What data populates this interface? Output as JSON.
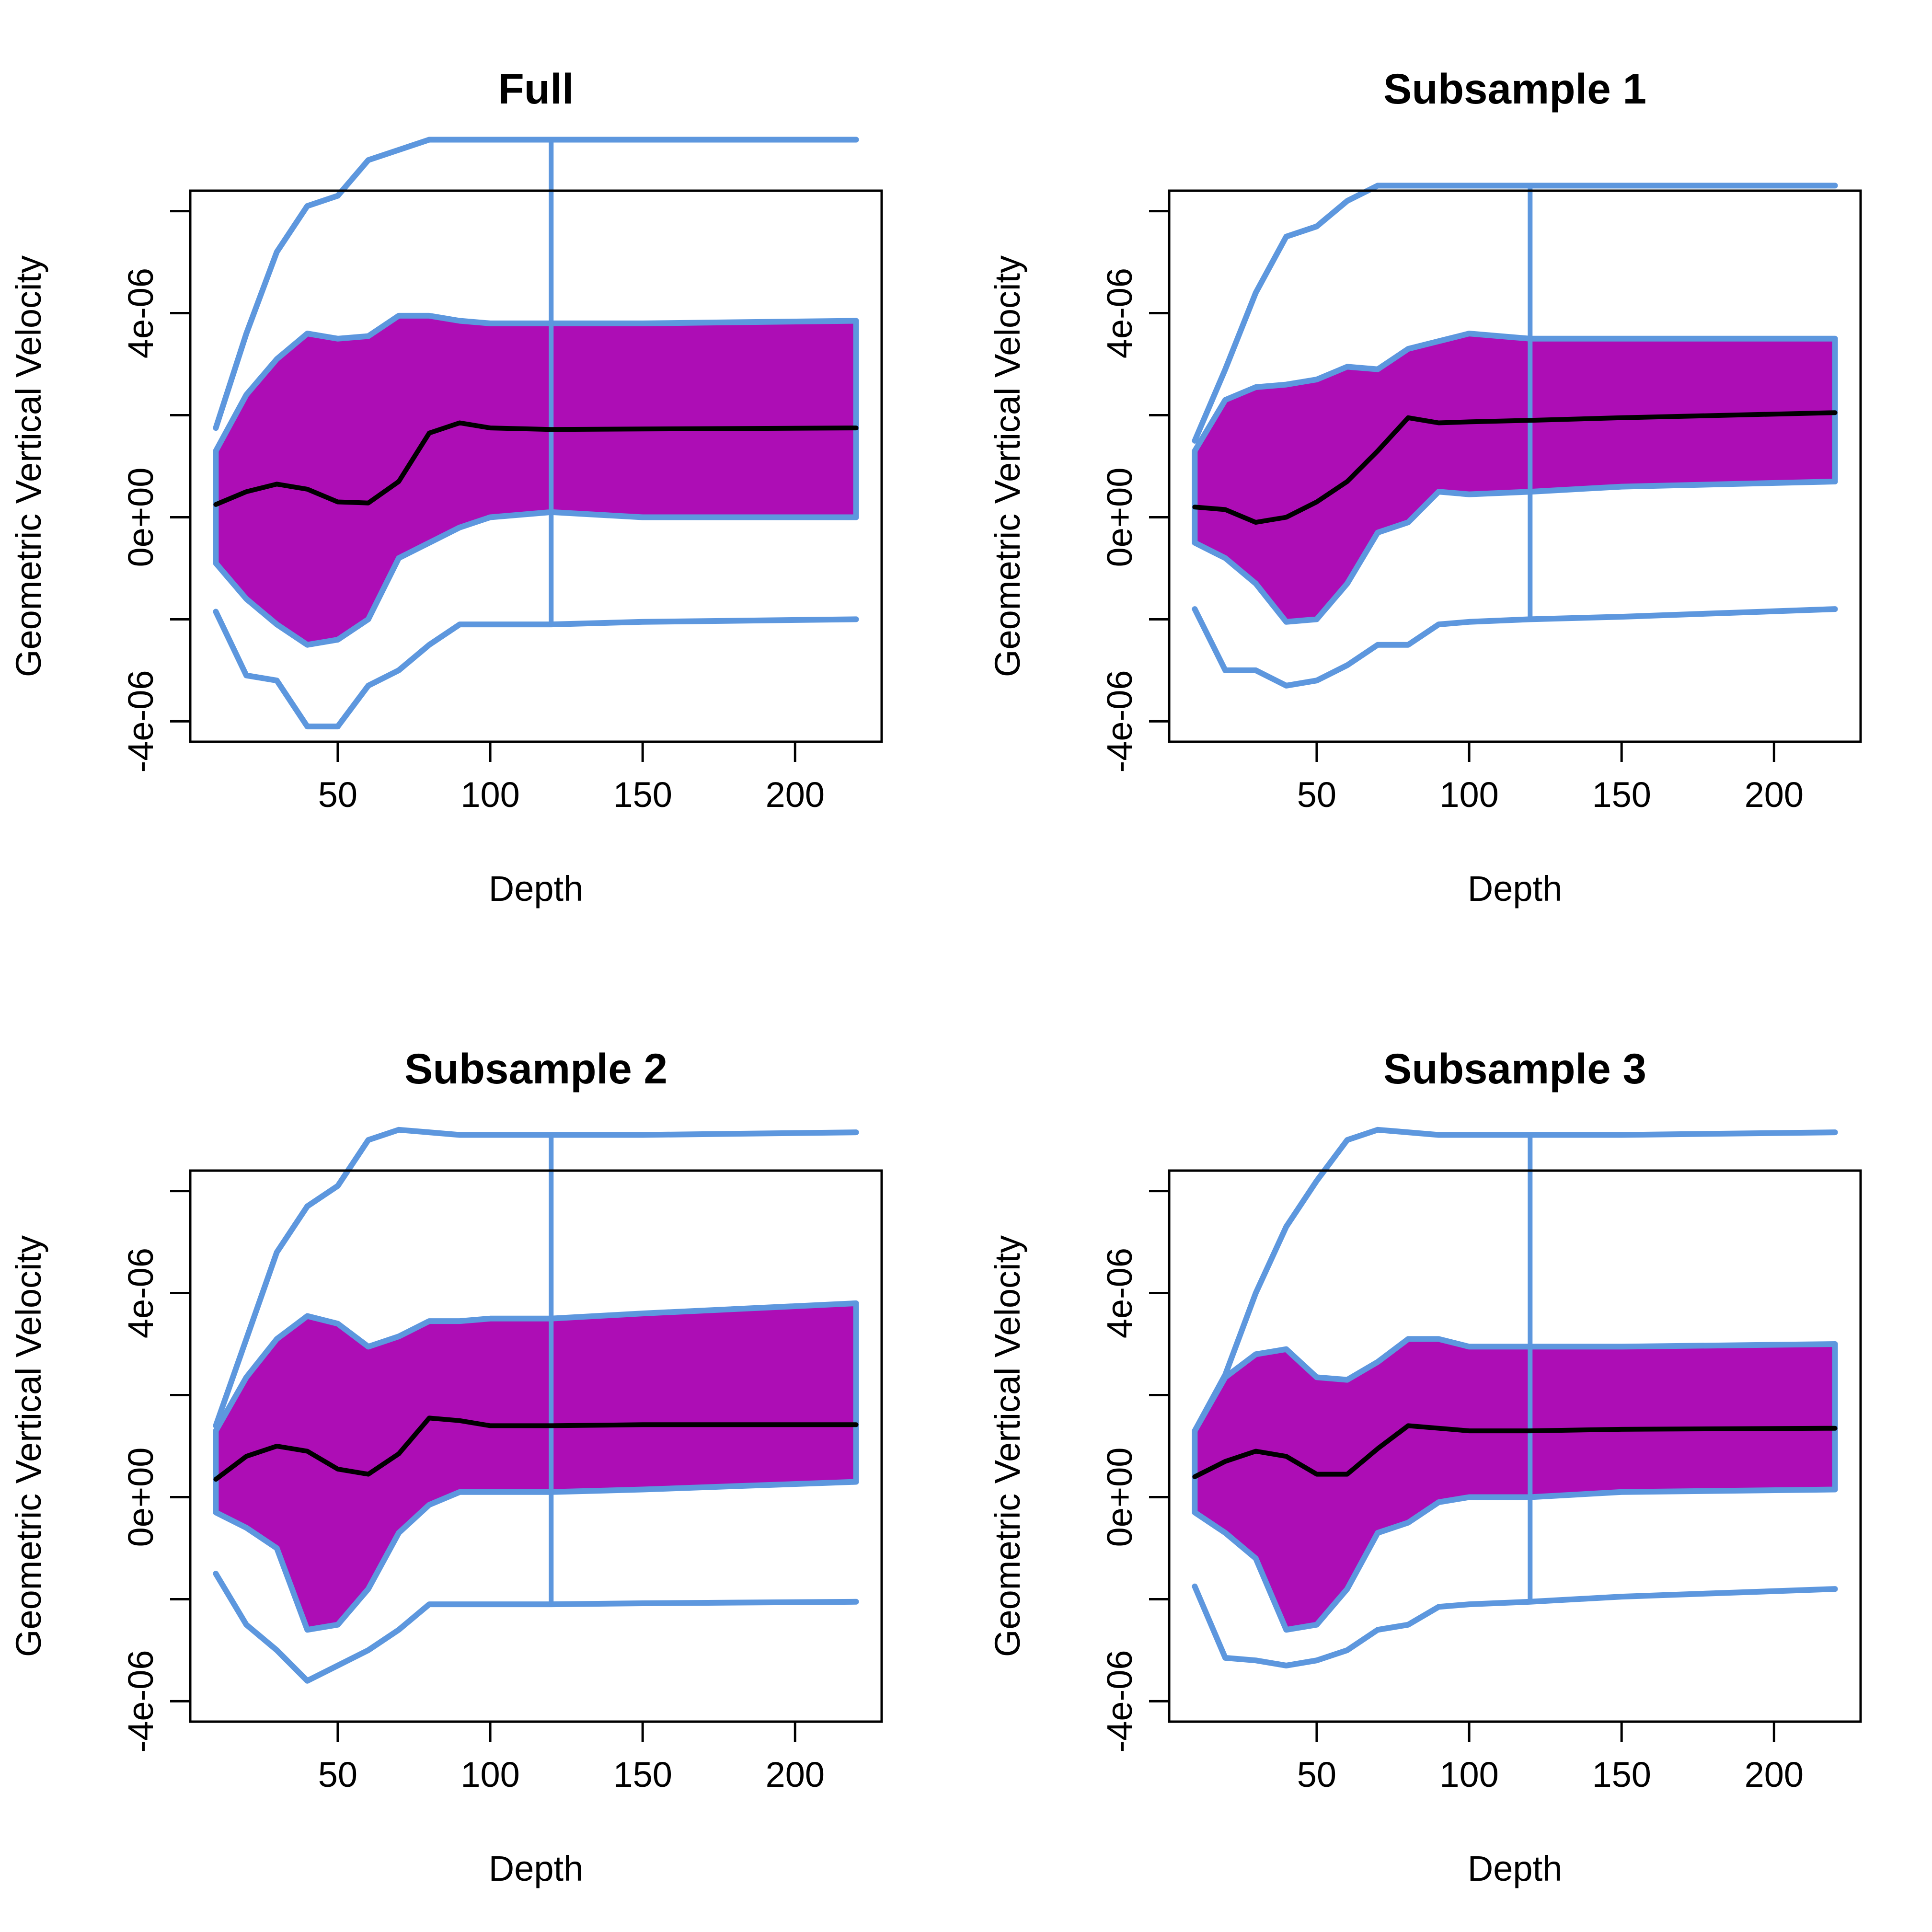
{
  "colors": {
    "band_fill": "#AD0DB5",
    "line_blue": "#5D97DE",
    "mean_line": "#000000"
  },
  "chart_data": [
    {
      "type": "line",
      "title": "Full",
      "xlabel": "Depth",
      "ylabel": "Geometric Vertical Velocity",
      "xlim": [
        10,
        220
      ],
      "ylim": [
        -4e-06,
        6e-06
      ],
      "xticks": [
        50,
        100,
        150,
        200
      ],
      "yticks": [
        -4e-06,
        0,
        4e-06
      ],
      "xtick_labels": [
        "50",
        "100",
        "150",
        "200"
      ],
      "ytick_labels": [
        "-4e-06",
        "0e+00",
        "4e-06"
      ],
      "vertical_marker_x": 120,
      "x": [
        10,
        20,
        30,
        40,
        50,
        60,
        70,
        80,
        90,
        100,
        120,
        150,
        220
      ],
      "series": [
        {
          "name": "upper outer",
          "values": [
            1.75e-06,
            3.6e-06,
            5.2e-06,
            6.1e-06,
            6.3e-06,
            7e-06,
            7.2e-06,
            7.4e-06,
            7.4e-06,
            7.4e-06,
            7.4e-06,
            7.4e-06,
            7.4e-06
          ]
        },
        {
          "name": "band upper",
          "values": [
            1.3e-06,
            2.4e-06,
            3.1e-06,
            3.6e-06,
            3.5e-06,
            3.55e-06,
            3.95e-06,
            3.95e-06,
            3.85e-06,
            3.8e-06,
            3.8e-06,
            3.8e-06,
            3.85e-06
          ]
        },
        {
          "name": "mean",
          "values": [
            2.5e-07,
            5e-07,
            6.5e-07,
            5.5e-07,
            3e-07,
            2.8e-07,
            7e-07,
            1.65e-06,
            1.85e-06,
            1.75e-06,
            1.72e-06,
            1.73e-06,
            1.75e-06
          ]
        },
        {
          "name": "band lower",
          "values": [
            -9e-07,
            -1.6e-06,
            -2.1e-06,
            -2.5e-06,
            -2.4e-06,
            -2e-06,
            -8e-07,
            -5e-07,
            -2e-07,
            0.0,
            1e-07,
            0.0,
            0.0
          ]
        },
        {
          "name": "lower outer",
          "values": [
            -1.85e-06,
            -3.1e-06,
            -3.2e-06,
            -4.1e-06,
            -4.1e-06,
            -3.3e-06,
            -3e-06,
            -2.5e-06,
            -2.1e-06,
            -2.1e-06,
            -2.1e-06,
            -2.05e-06,
            -2e-06
          ]
        }
      ]
    },
    {
      "type": "line",
      "title": "Subsample 1",
      "xlabel": "Depth",
      "ylabel": "Geometric Vertical Velocity",
      "xlim": [
        10,
        220
      ],
      "ylim": [
        -4e-06,
        6e-06
      ],
      "xticks": [
        50,
        100,
        150,
        200
      ],
      "yticks": [
        -4e-06,
        0,
        4e-06
      ],
      "xtick_labels": [
        "50",
        "100",
        "150",
        "200"
      ],
      "ytick_labels": [
        "-4e-06",
        "0e+00",
        "4e-06"
      ],
      "vertical_marker_x": 120,
      "x": [
        10,
        20,
        30,
        40,
        50,
        60,
        70,
        80,
        90,
        100,
        120,
        150,
        220
      ],
      "series": [
        {
          "name": "upper outer",
          "values": [
            1.5e-06,
            2.9e-06,
            4.4e-06,
            5.5e-06,
            5.7e-06,
            6.2e-06,
            6.5e-06,
            6.5e-06,
            6.5e-06,
            6.5e-06,
            6.5e-06,
            6.5e-06,
            6.5e-06
          ]
        },
        {
          "name": "band upper",
          "values": [
            1.3e-06,
            2.3e-06,
            2.55e-06,
            2.6e-06,
            2.7e-06,
            2.95e-06,
            2.9e-06,
            3.3e-06,
            3.45e-06,
            3.6e-06,
            3.5e-06,
            3.5e-06,
            3.5e-06
          ]
        },
        {
          "name": "mean",
          "values": [
            2e-07,
            1.5e-07,
            -1e-07,
            0.0,
            3e-07,
            7e-07,
            1.3e-06,
            1.95e-06,
            1.85e-06,
            1.87e-06,
            1.9e-06,
            1.95e-06,
            2.05e-06
          ]
        },
        {
          "name": "band lower",
          "values": [
            -5e-07,
            -8e-07,
            -1.3e-06,
            -2.05e-06,
            -2e-06,
            -1.3e-06,
            -3e-07,
            -1e-07,
            5e-07,
            4.5e-07,
            5e-07,
            6e-07,
            7e-07
          ]
        },
        {
          "name": "lower outer",
          "values": [
            -1.8e-06,
            -3e-06,
            -3e-06,
            -3.3e-06,
            -3.2e-06,
            -2.9e-06,
            -2.5e-06,
            -2.5e-06,
            -2.1e-06,
            -2.05e-06,
            -2e-06,
            -1.95e-06,
            -1.8e-06
          ]
        }
      ]
    },
    {
      "type": "line",
      "title": "Subsample 2",
      "xlabel": "Depth",
      "ylabel": "Geometric Vertical Velocity",
      "xlim": [
        10,
        220
      ],
      "ylim": [
        -4e-06,
        6e-06
      ],
      "xticks": [
        50,
        100,
        150,
        200
      ],
      "yticks": [
        -4e-06,
        0,
        4e-06
      ],
      "xtick_labels": [
        "50",
        "100",
        "150",
        "200"
      ],
      "ytick_labels": [
        "-4e-06",
        "0e+00",
        "4e-06"
      ],
      "vertical_marker_x": 120,
      "x": [
        10,
        20,
        30,
        40,
        50,
        60,
        70,
        80,
        90,
        100,
        120,
        150,
        220
      ],
      "series": [
        {
          "name": "upper outer",
          "values": [
            1.4e-06,
            3.1e-06,
            4.8e-06,
            5.7e-06,
            6.1e-06,
            7e-06,
            7.2e-06,
            7.15e-06,
            7.1e-06,
            7.1e-06,
            7.1e-06,
            7.1e-06,
            7.15e-06
          ]
        },
        {
          "name": "band upper",
          "values": [
            1.3e-06,
            2.35e-06,
            3.1e-06,
            3.55e-06,
            3.4e-06,
            2.95e-06,
            3.15e-06,
            3.45e-06,
            3.45e-06,
            3.5e-06,
            3.5e-06,
            3.6e-06,
            3.8e-06
          ]
        },
        {
          "name": "mean",
          "values": [
            3.5e-07,
            8e-07,
            1e-06,
            9e-07,
            5.5e-07,
            4.5e-07,
            8.5e-07,
            1.55e-06,
            1.5e-06,
            1.4e-06,
            1.4e-06,
            1.42e-06,
            1.42e-06
          ]
        },
        {
          "name": "band lower",
          "values": [
            -3e-07,
            -6e-07,
            -1e-06,
            -2.6e-06,
            -2.5e-06,
            -1.8e-06,
            -7e-07,
            -1.5e-07,
            1e-07,
            1e-07,
            1e-07,
            1.5e-07,
            3e-07
          ]
        },
        {
          "name": "lower outer",
          "values": [
            -1.5e-06,
            -2.5e-06,
            -3e-06,
            -3.6e-06,
            -3.3e-06,
            -3e-06,
            -2.6e-06,
            -2.1e-06,
            -2.1e-06,
            -2.1e-06,
            -2.1e-06,
            -2.08e-06,
            -2.05e-06
          ]
        }
      ]
    },
    {
      "type": "line",
      "title": "Subsample 3",
      "xlabel": "Depth",
      "ylabel": "Geometric Vertical Velocity",
      "xlim": [
        10,
        220
      ],
      "ylim": [
        -4e-06,
        6e-06
      ],
      "xticks": [
        50,
        100,
        150,
        200
      ],
      "yticks": [
        -4e-06,
        0,
        4e-06
      ],
      "xtick_labels": [
        "50",
        "100",
        "150",
        "200"
      ],
      "ytick_labels": [
        "-4e-06",
        "0e+00",
        "4e-06"
      ],
      "vertical_marker_x": 120,
      "x": [
        10,
        20,
        30,
        40,
        50,
        60,
        70,
        80,
        90,
        100,
        120,
        150,
        220
      ],
      "series": [
        {
          "name": "upper outer",
          "values": [
            1.3e-06,
            2.4e-06,
            4e-06,
            5.3e-06,
            6.2e-06,
            7e-06,
            7.2e-06,
            7.15e-06,
            7.1e-06,
            7.1e-06,
            7.1e-06,
            7.1e-06,
            7.15e-06
          ]
        },
        {
          "name": "band upper",
          "values": [
            1.3e-06,
            2.35e-06,
            2.8e-06,
            2.9e-06,
            2.35e-06,
            2.3e-06,
            2.65e-06,
            3.1e-06,
            3.1e-06,
            2.95e-06,
            2.95e-06,
            2.95e-06,
            3e-06
          ]
        },
        {
          "name": "mean",
          "values": [
            4e-07,
            7e-07,
            9e-07,
            8e-07,
            4.5e-07,
            4.5e-07,
            9.5e-07,
            1.4e-06,
            1.35e-06,
            1.3e-06,
            1.3e-06,
            1.33e-06,
            1.35e-06
          ]
        },
        {
          "name": "band lower",
          "values": [
            -3e-07,
            -7e-07,
            -1.2e-06,
            -2.6e-06,
            -2.5e-06,
            -1.8e-06,
            -7e-07,
            -5e-07,
            -1e-07,
            0.0,
            0.0,
            1e-07,
            1.5e-07
          ]
        },
        {
          "name": "lower outer",
          "values": [
            -1.75e-06,
            -3.15e-06,
            -3.2e-06,
            -3.3e-06,
            -3.2e-06,
            -3e-06,
            -2.6e-06,
            -2.5e-06,
            -2.15e-06,
            -2.1e-06,
            -2.05e-06,
            -1.95e-06,
            -1.8e-06
          ]
        }
      ]
    }
  ]
}
